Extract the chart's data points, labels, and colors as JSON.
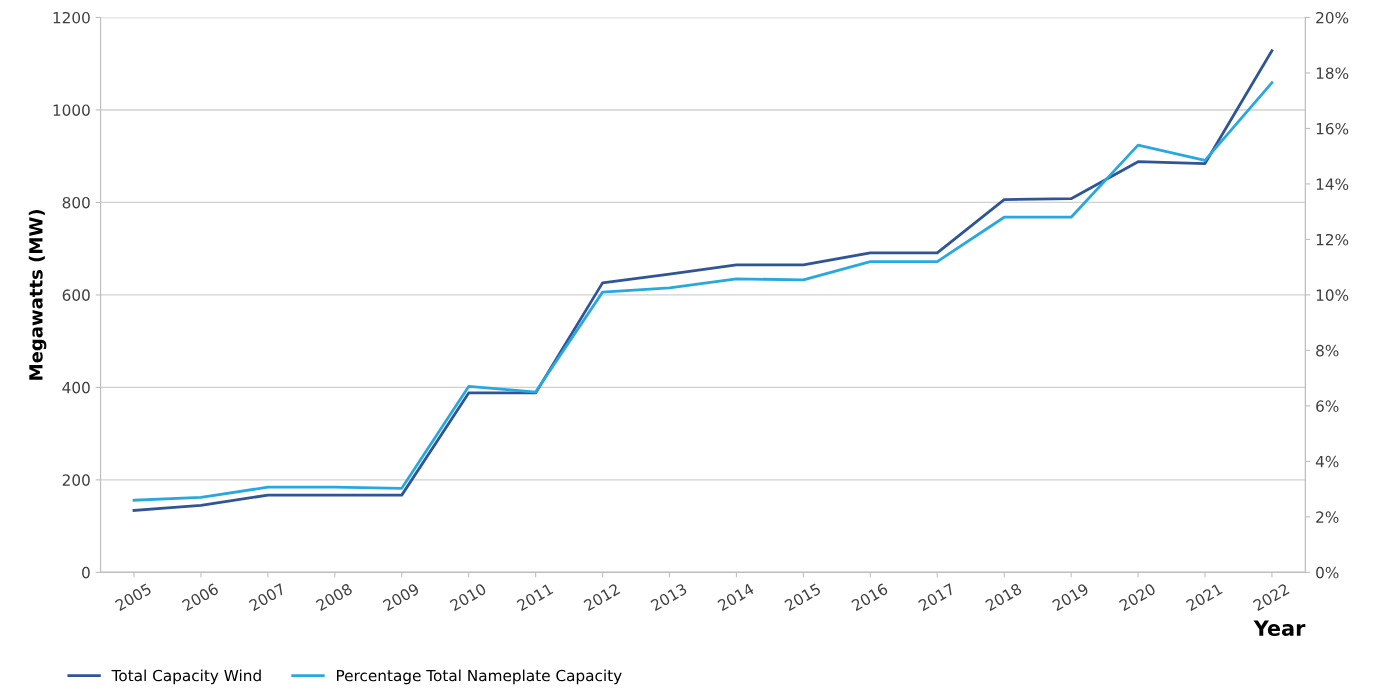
{
  "chart_data": {
    "type": "line",
    "xlabel": "Year",
    "ylabel": "Megawatts (MW)",
    "categories": [
      "2005",
      "2006",
      "2007",
      "2008",
      "2009",
      "2010",
      "2011",
      "2012",
      "2013",
      "2014",
      "2015",
      "2016",
      "2017",
      "2018",
      "2019",
      "2020",
      "2021",
      "2022"
    ],
    "series": [
      {
        "name": "Total Capacity Wind",
        "color": "#2f5597",
        "values": [
          134,
          145,
          167,
          167,
          167,
          388,
          388,
          626,
          645,
          665,
          665,
          691,
          691,
          806,
          808,
          888,
          884,
          1128
        ]
      },
      {
        "name": "Percentage Total Nameplate Capacity",
        "color": "#29a8e0",
        "axis": "y2",
        "values": [
          2.6,
          2.7,
          3.07,
          3.07,
          3.03,
          6.7,
          6.5,
          10.1,
          10.25,
          10.58,
          10.54,
          11.2,
          11.2,
          12.8,
          12.8,
          15.4,
          14.85,
          17.65
        ]
      }
    ],
    "ylim": [
      0,
      1200
    ],
    "yticks": [
      0,
      200,
      400,
      600,
      800,
      1000,
      1200
    ],
    "y2lim": [
      0,
      20
    ],
    "y2ticks": [
      {
        "value": 0,
        "label": "0%"
      },
      {
        "value": 2,
        "label": "2%"
      },
      {
        "value": 4,
        "label": "4%"
      },
      {
        "value": 6,
        "label": "6%"
      },
      {
        "value": 8,
        "label": "8%"
      },
      {
        "value": 10,
        "label": "10%"
      },
      {
        "value": 12,
        "label": "12%"
      },
      {
        "value": 14,
        "label": "14%"
      },
      {
        "value": 16,
        "label": "16%"
      },
      {
        "value": 18,
        "label": "18%"
      },
      {
        "value": 20,
        "label": "20%"
      }
    ],
    "grid": "y",
    "legend": "bottom left",
    "marker": "none",
    "line_style": "solid"
  }
}
